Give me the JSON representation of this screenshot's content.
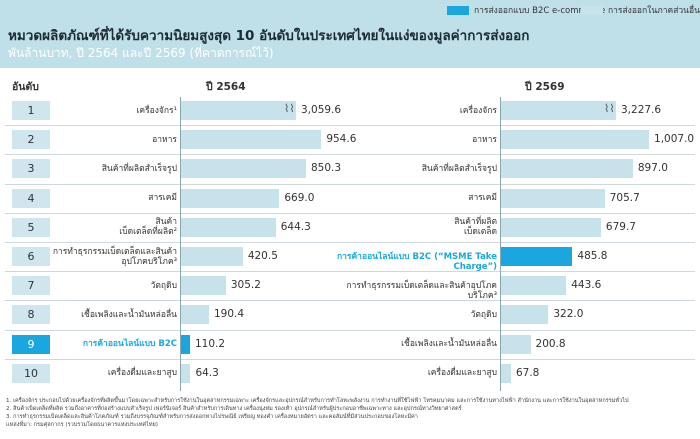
{
  "header": {
    "title": "หมวดผลิตภัณฑ์ที่ได้รับความนิยมสูงสุด 10 อันดับในประเทศไทยในแง่ของมูลค่าการส่งออก",
    "subtitle": "พันล้านบาท, ปี 2564 และปี 2569 (ที่คาดการณ์ไว้)"
  },
  "legend": [
    {
      "label": "การส่งออกแบบ B2C e-commerce",
      "color": "#1aa7e0"
    },
    {
      "label": "การส่งออกในภาคส่วนอื่น",
      "color": "#c7e2ea"
    }
  ],
  "rank_header": "อันดับ",
  "ranks": [
    "1",
    "2",
    "3",
    "4",
    "5",
    "6",
    "7",
    "8",
    "9",
    "10"
  ],
  "chart_data": [
    {
      "type": "bar",
      "title": "ปี 2564",
      "axis_break_on_first_bar": true,
      "categories": [
        "เครื่องจักร¹",
        "อาหาร",
        "สินค้าที่ผลิตสำเร็จรูป",
        "สารเคมี",
        "สินค้าเบ็ดเตล็ดที่ผลิต²",
        "การทำธุรกรรมเบ็ดเตล็ดและสินค้าอุปโภคบริโภค³",
        "วัตถุดิบ",
        "เชื้อเพลิงและน้ำมันหล่อลื่น",
        "การค้าออนไลน์แบบ B2C",
        "เครื่องดื่มและยาสูบ"
      ],
      "label_lines": [
        [
          "เครื่องจักร¹"
        ],
        [
          "อาหาร"
        ],
        [
          "สินค้าที่ผลิตสำเร็จรูป"
        ],
        [
          "สารเคมี"
        ],
        [
          "สินค้า",
          "เบ็ดเตล็ดที่ผลิต²"
        ],
        [
          "การทำธุรกรรมเบ็ดเตล็ดและสินค้า",
          "อุปโภคบริโภค³"
        ],
        [
          "วัตถุดิบ"
        ],
        [
          "เชื้อเพลิงและน้ำมันหล่อลื่น"
        ],
        [
          "การค้าออนไลน์แบบ B2C"
        ],
        [
          "เครื่องดื่มและยาสูบ"
        ]
      ],
      "values": [
        3059.6,
        954.6,
        850.3,
        669.0,
        644.3,
        420.5,
        305.2,
        190.4,
        110.2,
        64.3
      ],
      "value_labels": [
        "3,059.6",
        "954.6",
        "850.3",
        "669.0",
        "644.3",
        "420.5",
        "305.2",
        "190.4",
        "110.2",
        "64.3"
      ],
      "highlight": [
        false,
        false,
        false,
        false,
        false,
        false,
        false,
        false,
        true,
        false
      ]
    },
    {
      "type": "bar",
      "title": "ปี 2569",
      "axis_break_on_first_bar": true,
      "categories": [
        "เครื่องจักร",
        "อาหาร",
        "สินค้าที่ผลิตสำเร็จรูป",
        "สารเคมี",
        "สินค้าที่ผลิตเบ็ดเตล็ด",
        "การค้าออนไลน์แบบ B2C (“MSME Take Charge”)",
        "การทำธุรกรรมเบ็ดเตล็ดและสินค้าอุปโภคบริโภค³",
        "วัตถุดิบ",
        "เชื้อเพลิงและน้ำมันหล่อลื่น",
        "เครื่องดื่มและยาสูบ"
      ],
      "label_lines": [
        [
          "เครื่องจักร"
        ],
        [
          "อาหาร"
        ],
        [
          "สินค้าที่ผลิตสำเร็จรูป"
        ],
        [
          "สารเคมี"
        ],
        [
          "สินค้าที่ผลิต",
          "เบ็ดเตล็ด"
        ],
        [
          "การค้าออนไลน์แบบ B2C (“MSME Take Charge”)"
        ],
        [
          "การทำธุรกรรมเบ็ดเตล็ดและสินค้าอุปโภคบริโภค³"
        ],
        [
          "วัตถุดิบ"
        ],
        [
          "เชื้อเพลิงและน้ำมันหล่อลื่น"
        ],
        [
          "เครื่องดื่มและยาสูบ"
        ]
      ],
      "values": [
        3227.6,
        1007.0,
        897.0,
        705.7,
        679.7,
        485.8,
        443.6,
        322.0,
        200.8,
        67.8
      ],
      "value_labels": [
        "3,227.6",
        "1,007.0",
        "897.0",
        "705.7",
        "679.7",
        "485.8",
        "443.6",
        "322.0",
        "200.8",
        "67.8"
      ],
      "highlight": [
        false,
        false,
        false,
        false,
        false,
        true,
        false,
        false,
        false,
        false
      ]
    }
  ],
  "notes": [
    "1. เครื่องจักร ประกอบไปด้วยเครื่องจักรที่ผลิตขึ้นมาโดยเฉพาะสำหรับการใช้งานในอุตสาหกรรมเฉพาะ เครื่องจักรและอุปกรณ์สำหรับการทำโลหะพลังงาน การทำงานที่ใช้ไฟฟ้า โทรคมนาคม และการใช้งานทางไฟฟ้า สำนักงาน และการใช้งานในอุตสาหกรรมทั่วไป",
    "2. สินค้าเบ็ดเตล็ดที่ผลิต รวมถึงอาคารที่ก่อสร้างแบบสำเร็จรูป เฟอร์นิเจอร์ สินค้าสำหรับการเดินทาง เครื่องนุ่งห่ม รองเท้า อุปกรณ์สำหรับผู้ประกอบอาชีพเฉพาะทาง และอุปกรณ์ทางวิทยาศาสตร์",
    "3. การทำธุรกรรมเบ็ดเตล็ดและสินค้าโภคภัณฑ์ รวมถึงบรรจุภัณฑ์สำหรับการส่งออกทางไปรษณีย์ เหรียญ ทองคำ เครื่องหมายอัตรา และคอลัมน์ที่มีส่วนประกอบของโลหะมีค่า",
    "แหล่งที่มา: กรมศุลกากร (รวบรวมโดยธนาคารแห่งประเทศไทย)"
  ]
}
